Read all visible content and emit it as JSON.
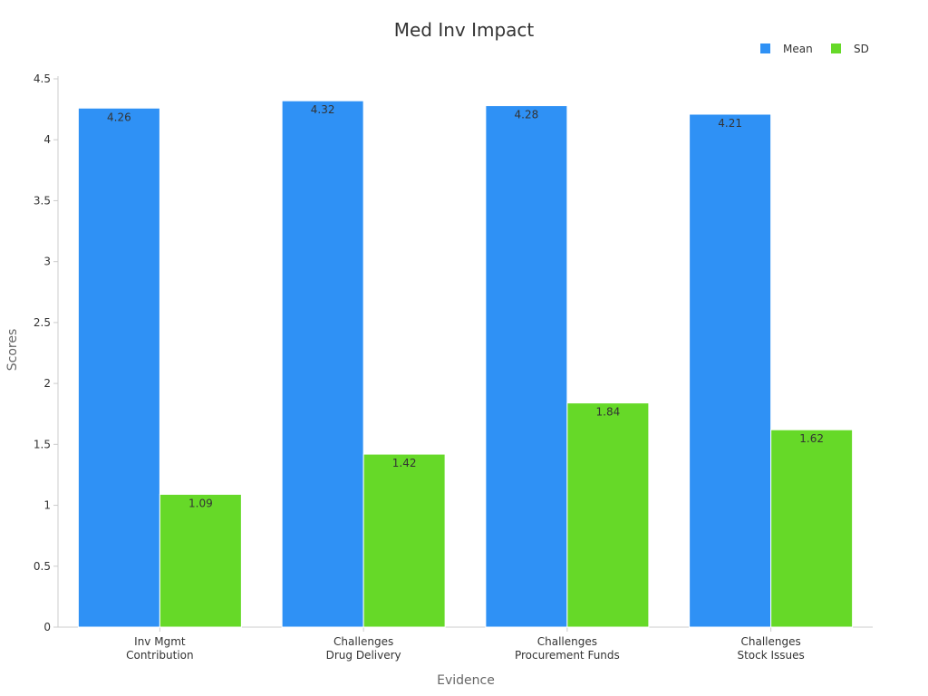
{
  "chart_data": {
    "type": "bar",
    "title": "Med Inv Impact",
    "xlabel": "Evidence",
    "ylabel": "Scores",
    "categories": [
      [
        "Inv Mgmt",
        "Contribution"
      ],
      [
        "Challenges",
        "Drug Delivery"
      ],
      [
        "Challenges",
        "Procurement Funds"
      ],
      [
        "Challenges",
        "Stock Issues"
      ]
    ],
    "series": [
      {
        "name": "Mean",
        "color": "#2f91f5",
        "values": [
          4.26,
          4.32,
          4.28,
          4.21
        ],
        "labels": [
          "4.26",
          "4.32",
          "4.28",
          "4.21"
        ]
      },
      {
        "name": "SD",
        "color": "#66d928",
        "values": [
          1.09,
          1.42,
          1.84,
          1.62
        ],
        "labels": [
          "1.09",
          "1.42",
          "1.84",
          "1.62"
        ]
      }
    ],
    "ylim": [
      0,
      4.5
    ],
    "yticks": [
      {
        "value": 0,
        "label": "0"
      },
      {
        "value": 0.5,
        "label": "0.5"
      },
      {
        "value": 1,
        "label": "1"
      },
      {
        "value": 1.5,
        "label": "1.5"
      },
      {
        "value": 2,
        "label": "2"
      },
      {
        "value": 2.5,
        "label": "2.5"
      },
      {
        "value": 3,
        "label": "3"
      },
      {
        "value": 3.5,
        "label": "3.5"
      },
      {
        "value": 4,
        "label": "4"
      },
      {
        "value": 4.5,
        "label": "4.5"
      }
    ],
    "grid": false,
    "legend_position": "top-right"
  }
}
